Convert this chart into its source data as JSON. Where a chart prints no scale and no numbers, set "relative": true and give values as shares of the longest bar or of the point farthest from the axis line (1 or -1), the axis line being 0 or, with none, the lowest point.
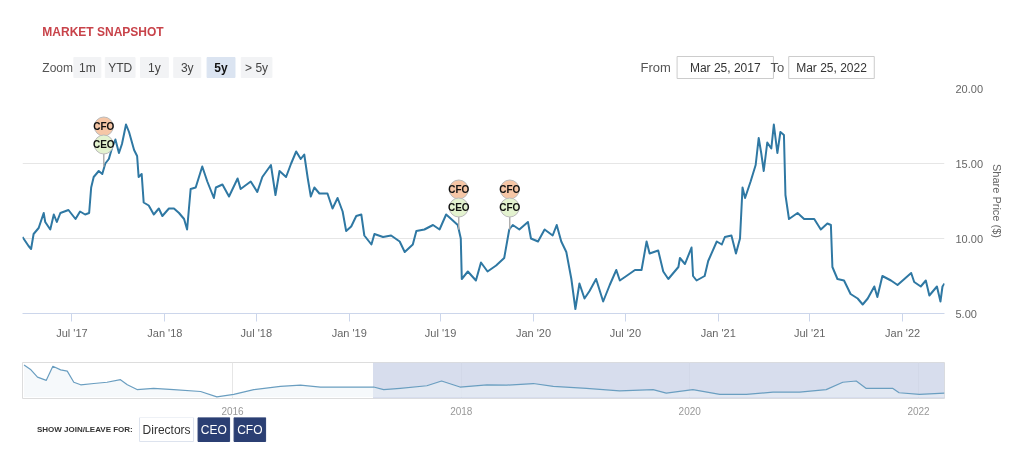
{
  "chart_data": [
    {
      "type": "line",
      "title": "MARKET SNAPSHOT",
      "ylabel": "Share Price ($)",
      "x": [
        "2017-03-25",
        "2017-04-06",
        "2017-04-11",
        "2017-04-16",
        "2017-04-26",
        "2017-05-06",
        "2017-05-09",
        "2017-05-19",
        "2017-05-26",
        "2017-06-01",
        "2017-06-08",
        "2017-06-24",
        "2017-07-01",
        "2017-07-08",
        "2017-07-17",
        "2017-07-27",
        "2017-08-04",
        "2017-08-08",
        "2017-08-13",
        "2017-08-23",
        "2017-08-30",
        "2017-09-05",
        "2017-09-12",
        "2017-09-18",
        "2017-09-25",
        "2017-10-02",
        "2017-10-08",
        "2017-10-16",
        "2017-10-22",
        "2017-11-01",
        "2017-11-07",
        "2017-11-10",
        "2017-11-16",
        "2017-11-20",
        "2017-11-30",
        "2017-12-10",
        "2017-12-20",
        "2017-12-27",
        "2018-01-09",
        "2018-01-19",
        "2018-01-29",
        "2018-02-08",
        "2018-02-14",
        "2018-02-21",
        "2018-03-03",
        "2018-03-16",
        "2018-03-26",
        "2018-04-08",
        "2018-04-12",
        "2018-04-25",
        "2018-05-08",
        "2018-05-25",
        "2018-05-31",
        "2018-06-20",
        "2018-07-03",
        "2018-07-13",
        "2018-07-30",
        "2018-08-08",
        "2018-08-16",
        "2018-08-29",
        "2018-09-08",
        "2018-09-18",
        "2018-09-27",
        "2018-10-04",
        "2018-10-11",
        "2018-10-17",
        "2018-10-24",
        "2018-11-03",
        "2018-11-19",
        "2018-11-29",
        "2018-12-09",
        "2018-12-19",
        "2018-12-26",
        "2019-01-05",
        "2019-01-15",
        "2019-01-25",
        "2019-01-31",
        "2019-02-14",
        "2019-02-20",
        "2019-03-09",
        "2019-03-25",
        "2019-04-11",
        "2019-04-21",
        "2019-05-07",
        "2019-05-14",
        "2019-05-30",
        "2019-06-16",
        "2019-06-29",
        "2019-07-12",
        "2019-07-22",
        "2019-08-04",
        "2019-08-10",
        "2019-08-12",
        "2019-08-24",
        "2019-09-09",
        "2019-09-19",
        "2019-10-02",
        "2019-10-19",
        "2019-11-04",
        "2019-11-14",
        "2019-11-21",
        "2019-12-04",
        "2019-12-21",
        "2019-12-27",
        "2020-01-10",
        "2020-01-23",
        "2020-02-08",
        "2020-02-16",
        "2020-02-25",
        "2020-03-06",
        "2020-03-16",
        "2020-03-24",
        "2020-04-01",
        "2020-04-11",
        "2020-04-21",
        "2020-05-04",
        "2020-05-18",
        "2020-05-31",
        "2020-06-13",
        "2020-06-20",
        "2020-07-03",
        "2020-07-20",
        "2020-08-02",
        "2020-08-12",
        "2020-08-18",
        "2020-09-04",
        "2020-09-14",
        "2020-09-24",
        "2020-10-14",
        "2020-10-17",
        "2020-10-27",
        "2020-11-09",
        "2020-11-12",
        "2020-11-19",
        "2020-12-05",
        "2020-12-12",
        "2020-12-29",
        "2021-01-08",
        "2021-01-14",
        "2021-01-27",
        "2021-02-05",
        "2021-02-13",
        "2021-02-18",
        "2021-02-23",
        "2021-03-06",
        "2021-03-16",
        "2021-03-22",
        "2021-03-27",
        "2021-04-01",
        "2021-04-08",
        "2021-04-16",
        "2021-04-21",
        "2021-04-28",
        "2021-05-04",
        "2021-05-11",
        "2021-05-14",
        "2021-05-21",
        "2021-06-07",
        "2021-06-20",
        "2021-07-10",
        "2021-07-23",
        "2021-08-05",
        "2021-08-12",
        "2021-08-15",
        "2021-08-25",
        "2021-09-07",
        "2021-09-20",
        "2021-10-04",
        "2021-10-14",
        "2021-10-24",
        "2021-11-06",
        "2021-11-12",
        "2021-11-22",
        "2021-12-09",
        "2021-12-22",
        "2022-01-18",
        "2022-01-24",
        "2022-02-06",
        "2022-02-16",
        "2022-02-23",
        "2022-03-10",
        "2022-03-17",
        "2022-03-21",
        "2022-03-25"
      ],
      "series": [
        {
          "color": "#2f78a3",
          "values": [
            10.1,
            9.5,
            9.3,
            10.3,
            10.7,
            11.7,
            11.1,
            10.6,
            11.6,
            11.1,
            11.7,
            11.9,
            11.6,
            11.3,
            11.8,
            11.6,
            11.7,
            13.4,
            14.1,
            14.5,
            14.3,
            15.0,
            15.3,
            16.0,
            16.6,
            15.7,
            16.3,
            17.6,
            17.1,
            15.9,
            15.5,
            14.1,
            14.3,
            12.4,
            12.2,
            11.6,
            12.0,
            11.5,
            12.0,
            12.0,
            11.7,
            11.3,
            10.6,
            13.3,
            13.4,
            14.8,
            13.8,
            12.7,
            13.4,
            13.6,
            12.8,
            14.0,
            13.3,
            13.8,
            13.1,
            14.1,
            14.9,
            12.9,
            14.5,
            14.1,
            15.0,
            15.8,
            15.3,
            15.6,
            14.0,
            12.8,
            13.4,
            13.0,
            13.0,
            12.0,
            12.7,
            11.8,
            10.5,
            10.8,
            11.5,
            11.6,
            10.2,
            9.6,
            10.3,
            10.1,
            10.2,
            9.8,
            9.1,
            9.6,
            10.5,
            10.6,
            10.9,
            10.6,
            11.6,
            11.3,
            10.9,
            10.0,
            7.3,
            7.8,
            7.2,
            8.4,
            7.8,
            8.2,
            8.7,
            10.6,
            10.9,
            10.6,
            11.1,
            10.0,
            9.8,
            10.6,
            10.2,
            10.9,
            9.8,
            9.1,
            7.3,
            5.3,
            7.0,
            6.0,
            6.5,
            7.3,
            5.8,
            6.9,
            7.9,
            7.2,
            7.5,
            7.9,
            7.9,
            9.8,
            9.0,
            9.2,
            7.8,
            7.3,
            8.1,
            8.7,
            8.3,
            9.4,
            7.5,
            7.2,
            7.5,
            8.5,
            9.8,
            9.6,
            10.1,
            10.2,
            9.0,
            10.0,
            13.4,
            12.7,
            13.8,
            14.9,
            16.7,
            15.7,
            14.5,
            16.4,
            16.0,
            17.6,
            15.7,
            17.1,
            16.9,
            12.9,
            11.3,
            11.7,
            11.3,
            11.3,
            10.6,
            11.0,
            10.9,
            8.1,
            7.3,
            7.2,
            6.3,
            6.0,
            5.6,
            6.0,
            6.8,
            6.1,
            7.5,
            7.2,
            6.9,
            7.7,
            7.1,
            6.8,
            7.2,
            6.2,
            6.8,
            5.8,
            6.8,
            7.0
          ]
        }
      ],
      "xlim": [
        "2017-03-25",
        "2022-03-25"
      ],
      "ylim": [
        5,
        20
      ],
      "xticks": [
        {
          "value": "2017-07-01",
          "label": "Jul '17"
        },
        {
          "value": "2018-01-01",
          "label": "Jan '18"
        },
        {
          "value": "2018-07-01",
          "label": "Jul '18"
        },
        {
          "value": "2019-01-01",
          "label": "Jan '19"
        },
        {
          "value": "2019-07-01",
          "label": "Jul '19"
        },
        {
          "value": "2020-01-01",
          "label": "Jan '20"
        },
        {
          "value": "2020-07-01",
          "label": "Jul '20"
        },
        {
          "value": "2021-01-01",
          "label": "Jan '21"
        },
        {
          "value": "2021-07-01",
          "label": "Jul '21"
        },
        {
          "value": "2022-01-01",
          "label": "Jan '22"
        }
      ],
      "yticks": [
        {
          "value": 5,
          "label": "5.00"
        },
        {
          "value": 10,
          "label": "10.00"
        },
        {
          "value": 15,
          "label": "15.00"
        },
        {
          "value": 20,
          "label": "20.00"
        }
      ],
      "grid": "y",
      "annotations": [
        "Zoom",
        "1m",
        "YTD",
        "1y",
        "3y",
        "5y",
        "> 5y",
        "From",
        "Mar 25, 2017",
        "To",
        "Mar 25, 2022",
        {
          "text": "CFO",
          "x": "2017-09-02",
          "y": 14.8
        },
        {
          "text": "CEO",
          "x": "2017-09-02",
          "y": 14.8
        },
        {
          "text": "CFO",
          "x": "2019-08-06",
          "y": 10.6
        },
        {
          "text": "CEO",
          "x": "2019-08-06",
          "y": 10.6
        },
        {
          "text": "CFO",
          "x": "2019-11-15",
          "y": 10.6
        },
        {
          "text": "CFO",
          "x": "2019-11-15",
          "y": 10.6
        }
      ]
    },
    {
      "type": "area",
      "relative": true,
      "color": "#6a9ec0",
      "x": [
        "2014-03-06",
        "2014-03-28",
        "2014-04-18",
        "2014-05-16",
        "2014-06-06",
        "2014-07-01",
        "2014-07-22",
        "2014-08-12",
        "2014-09-03",
        "2014-10-15",
        "2014-11-26",
        "2015-01-08",
        "2015-01-30",
        "2015-03-02",
        "2015-04-24",
        "2015-06-27",
        "2015-09-21",
        "2015-11-12",
        "2016-01-05",
        "2016-03-09",
        "2016-06-02",
        "2016-08-05",
        "2016-10-08",
        "2017-01-01",
        "2017-03-27",
        "2017-04-28",
        "2017-06-20",
        "2017-09-13",
        "2017-10-30",
        "2017-12-28",
        "2018-03-24",
        "2018-05-26",
        "2018-08-19",
        "2018-10-22",
        "2019-02-05",
        "2019-05-22",
        "2019-09-06",
        "2019-10-18",
        "2020-01-11",
        "2020-04-06",
        "2020-06-30",
        "2020-09-23",
        "2020-12-17",
        "2021-03-12",
        "2021-05-04",
        "2021-06-16",
        "2021-07-17",
        "2021-10-10",
        "2021-10-31",
        "2022-01-04",
        "2022-03-25"
      ],
      "values": [
        1.0,
        0.85,
        0.62,
        0.52,
        0.96,
        0.85,
        0.81,
        0.46,
        0.38,
        0.42,
        0.46,
        0.54,
        0.38,
        0.23,
        0.27,
        0.23,
        0.17,
        0,
        0.08,
        0.23,
        0.33,
        0.37,
        0.31,
        0.31,
        0.31,
        0.23,
        0.27,
        0.35,
        0.5,
        0.31,
        0.38,
        0.37,
        0.42,
        0.33,
        0.27,
        0.19,
        0.23,
        0.12,
        0.23,
        0.08,
        0.08,
        0.15,
        0.15,
        0.23,
        0.46,
        0.5,
        0.27,
        0.27,
        0.13,
        0.08,
        0.12
      ],
      "xlim": [
        "2014-03-01",
        "2022-03-25"
      ],
      "xticks": [
        {
          "value": "2016-01-01",
          "label": "2016"
        },
        {
          "value": "2018-01-01",
          "label": "2018"
        },
        {
          "value": "2020-01-01",
          "label": "2020"
        },
        {
          "value": "2022-01-01",
          "label": "2022"
        }
      ],
      "grid": "x",
      "bands": [
        {
          "axis": "x",
          "from": "2017-03-25",
          "to": "2022-03-25",
          "color": "#cdd5e8"
        }
      ],
      "annotations": [
        "SHOW JOIN/LEAVE FOR:",
        "Directors",
        "CEO",
        "CFO"
      ]
    }
  ]
}
